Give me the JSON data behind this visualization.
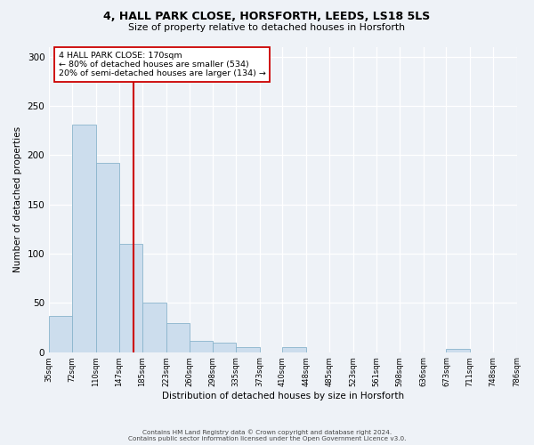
{
  "title_line1": "4, HALL PARK CLOSE, HORSFORTH, LEEDS, LS18 5LS",
  "title_line2": "Size of property relative to detached houses in Horsforth",
  "xlabel": "Distribution of detached houses by size in Horsforth",
  "ylabel": "Number of detached properties",
  "bar_color": "#ccdded",
  "bar_edgecolor": "#8ab4cc",
  "vline_x": 170,
  "vline_color": "#cc0000",
  "annotation_title": "4 HALL PARK CLOSE: 170sqm",
  "annotation_line2": "← 80% of detached houses are smaller (534)",
  "annotation_line3": "20% of semi-detached houses are larger (134) →",
  "footer_line1": "Contains HM Land Registry data © Crown copyright and database right 2024.",
  "footer_line2": "Contains public sector information licensed under the Open Government Licence v3.0.",
  "bin_edges": [
    35,
    72,
    110,
    147,
    185,
    223,
    260,
    298,
    335,
    373,
    410,
    448,
    485,
    523,
    561,
    598,
    636,
    673,
    711,
    748,
    786
  ],
  "bar_heights": [
    37,
    231,
    192,
    110,
    50,
    29,
    11,
    10,
    5,
    0,
    5,
    0,
    0,
    0,
    0,
    0,
    0,
    3,
    0,
    0
  ],
  "ylim": [
    0,
    310
  ],
  "yticks": [
    0,
    50,
    100,
    150,
    200,
    250,
    300
  ],
  "background_color": "#eef2f7",
  "figsize": [
    6.0,
    5.0
  ],
  "dpi": 100
}
